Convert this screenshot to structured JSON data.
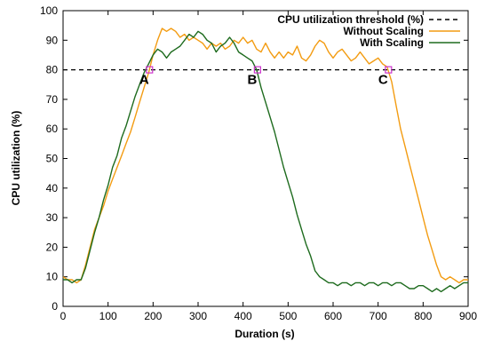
{
  "chart_data": {
    "type": "line",
    "xlabel": "Duration (s)",
    "ylabel": "CPU utilization (%)",
    "xlim": [
      0,
      900
    ],
    "ylim": [
      0,
      100
    ],
    "x_ticks": [
      0,
      100,
      200,
      300,
      400,
      500,
      600,
      700,
      800,
      900
    ],
    "y_ticks": [
      0,
      10,
      20,
      30,
      40,
      50,
      60,
      70,
      80,
      90,
      100
    ],
    "grid": false,
    "legend_position": "top-right",
    "threshold": {
      "name": "CPU utilization threshold (%)",
      "value": 80,
      "color": "#000000"
    },
    "series": [
      {
        "name": "Without Scaling",
        "color": "#f39c12",
        "points": [
          [
            0,
            10
          ],
          [
            10,
            9
          ],
          [
            20,
            9
          ],
          [
            30,
            8
          ],
          [
            40,
            9
          ],
          [
            50,
            14
          ],
          [
            60,
            20
          ],
          [
            70,
            26
          ],
          [
            80,
            30
          ],
          [
            90,
            34
          ],
          [
            100,
            39
          ],
          [
            110,
            43
          ],
          [
            120,
            47
          ],
          [
            130,
            51
          ],
          [
            140,
            55
          ],
          [
            150,
            59
          ],
          [
            160,
            64
          ],
          [
            170,
            69
          ],
          [
            180,
            74
          ],
          [
            190,
            79
          ],
          [
            200,
            85
          ],
          [
            210,
            90
          ],
          [
            220,
            94
          ],
          [
            230,
            93
          ],
          [
            240,
            94
          ],
          [
            250,
            93
          ],
          [
            260,
            91
          ],
          [
            270,
            92
          ],
          [
            280,
            90
          ],
          [
            290,
            91
          ],
          [
            300,
            90
          ],
          [
            310,
            89
          ],
          [
            320,
            87
          ],
          [
            330,
            89
          ],
          [
            340,
            88
          ],
          [
            350,
            89
          ],
          [
            360,
            87
          ],
          [
            370,
            88
          ],
          [
            380,
            90
          ],
          [
            390,
            89
          ],
          [
            400,
            91
          ],
          [
            410,
            89
          ],
          [
            420,
            90
          ],
          [
            430,
            87
          ],
          [
            440,
            86
          ],
          [
            450,
            89
          ],
          [
            460,
            86
          ],
          [
            470,
            84
          ],
          [
            480,
            86
          ],
          [
            490,
            84
          ],
          [
            500,
            86
          ],
          [
            510,
            85
          ],
          [
            520,
            88
          ],
          [
            530,
            84
          ],
          [
            540,
            83
          ],
          [
            550,
            85
          ],
          [
            560,
            88
          ],
          [
            570,
            90
          ],
          [
            580,
            89
          ],
          [
            590,
            86
          ],
          [
            600,
            84
          ],
          [
            610,
            86
          ],
          [
            620,
            87
          ],
          [
            630,
            85
          ],
          [
            640,
            83
          ],
          [
            650,
            84
          ],
          [
            660,
            86
          ],
          [
            670,
            84
          ],
          [
            680,
            82
          ],
          [
            690,
            83
          ],
          [
            700,
            84
          ],
          [
            710,
            82
          ],
          [
            720,
            81
          ],
          [
            730,
            76
          ],
          [
            740,
            68
          ],
          [
            750,
            60
          ],
          [
            760,
            54
          ],
          [
            770,
            48
          ],
          [
            780,
            42
          ],
          [
            790,
            36
          ],
          [
            800,
            30
          ],
          [
            810,
            24
          ],
          [
            820,
            19
          ],
          [
            830,
            14
          ],
          [
            840,
            10
          ],
          [
            850,
            9
          ],
          [
            860,
            10
          ],
          [
            870,
            9
          ],
          [
            880,
            8
          ],
          [
            890,
            9
          ],
          [
            900,
            9
          ]
        ]
      },
      {
        "name": "With Scaling",
        "color": "#1e6b1e",
        "points": [
          [
            0,
            9
          ],
          [
            10,
            9
          ],
          [
            20,
            8
          ],
          [
            30,
            9
          ],
          [
            40,
            9
          ],
          [
            50,
            13
          ],
          [
            60,
            19
          ],
          [
            70,
            25
          ],
          [
            80,
            30
          ],
          [
            90,
            36
          ],
          [
            100,
            41
          ],
          [
            110,
            47
          ],
          [
            120,
            51
          ],
          [
            130,
            57
          ],
          [
            140,
            61
          ],
          [
            150,
            66
          ],
          [
            160,
            71
          ],
          [
            170,
            75
          ],
          [
            180,
            79
          ],
          [
            190,
            82
          ],
          [
            200,
            85
          ],
          [
            210,
            87
          ],
          [
            220,
            86
          ],
          [
            230,
            84
          ],
          [
            240,
            86
          ],
          [
            250,
            87
          ],
          [
            260,
            88
          ],
          [
            270,
            90
          ],
          [
            280,
            92
          ],
          [
            290,
            91
          ],
          [
            300,
            93
          ],
          [
            310,
            92
          ],
          [
            320,
            90
          ],
          [
            330,
            89
          ],
          [
            340,
            86
          ],
          [
            350,
            88
          ],
          [
            360,
            89
          ],
          [
            370,
            91
          ],
          [
            380,
            89
          ],
          [
            390,
            86
          ],
          [
            400,
            85
          ],
          [
            410,
            84
          ],
          [
            420,
            83
          ],
          [
            430,
            80
          ],
          [
            440,
            74
          ],
          [
            450,
            69
          ],
          [
            460,
            64
          ],
          [
            470,
            59
          ],
          [
            480,
            53
          ],
          [
            490,
            47
          ],
          [
            500,
            42
          ],
          [
            510,
            37
          ],
          [
            520,
            31
          ],
          [
            530,
            26
          ],
          [
            540,
            21
          ],
          [
            550,
            17
          ],
          [
            560,
            12
          ],
          [
            570,
            10
          ],
          [
            580,
            9
          ],
          [
            590,
            8
          ],
          [
            600,
            8
          ],
          [
            610,
            7
          ],
          [
            620,
            8
          ],
          [
            630,
            8
          ],
          [
            640,
            7
          ],
          [
            650,
            8
          ],
          [
            660,
            8
          ],
          [
            670,
            7
          ],
          [
            680,
            8
          ],
          [
            690,
            8
          ],
          [
            700,
            7
          ],
          [
            710,
            8
          ],
          [
            720,
            8
          ],
          [
            730,
            7
          ],
          [
            740,
            8
          ],
          [
            750,
            8
          ],
          [
            760,
            7
          ],
          [
            770,
            6
          ],
          [
            780,
            6
          ],
          [
            790,
            7
          ],
          [
            800,
            7
          ],
          [
            810,
            6
          ],
          [
            820,
            5
          ],
          [
            830,
            6
          ],
          [
            840,
            5
          ],
          [
            850,
            6
          ],
          [
            860,
            7
          ],
          [
            870,
            6
          ],
          [
            880,
            7
          ],
          [
            890,
            8
          ],
          [
            900,
            8
          ]
        ]
      }
    ],
    "annotations": [
      {
        "label": "A",
        "x": 192,
        "y": 80
      },
      {
        "label": "B",
        "x": 432,
        "y": 80
      },
      {
        "label": "C",
        "x": 723,
        "y": 80
      }
    ],
    "marker_color": "#cc33cc"
  }
}
